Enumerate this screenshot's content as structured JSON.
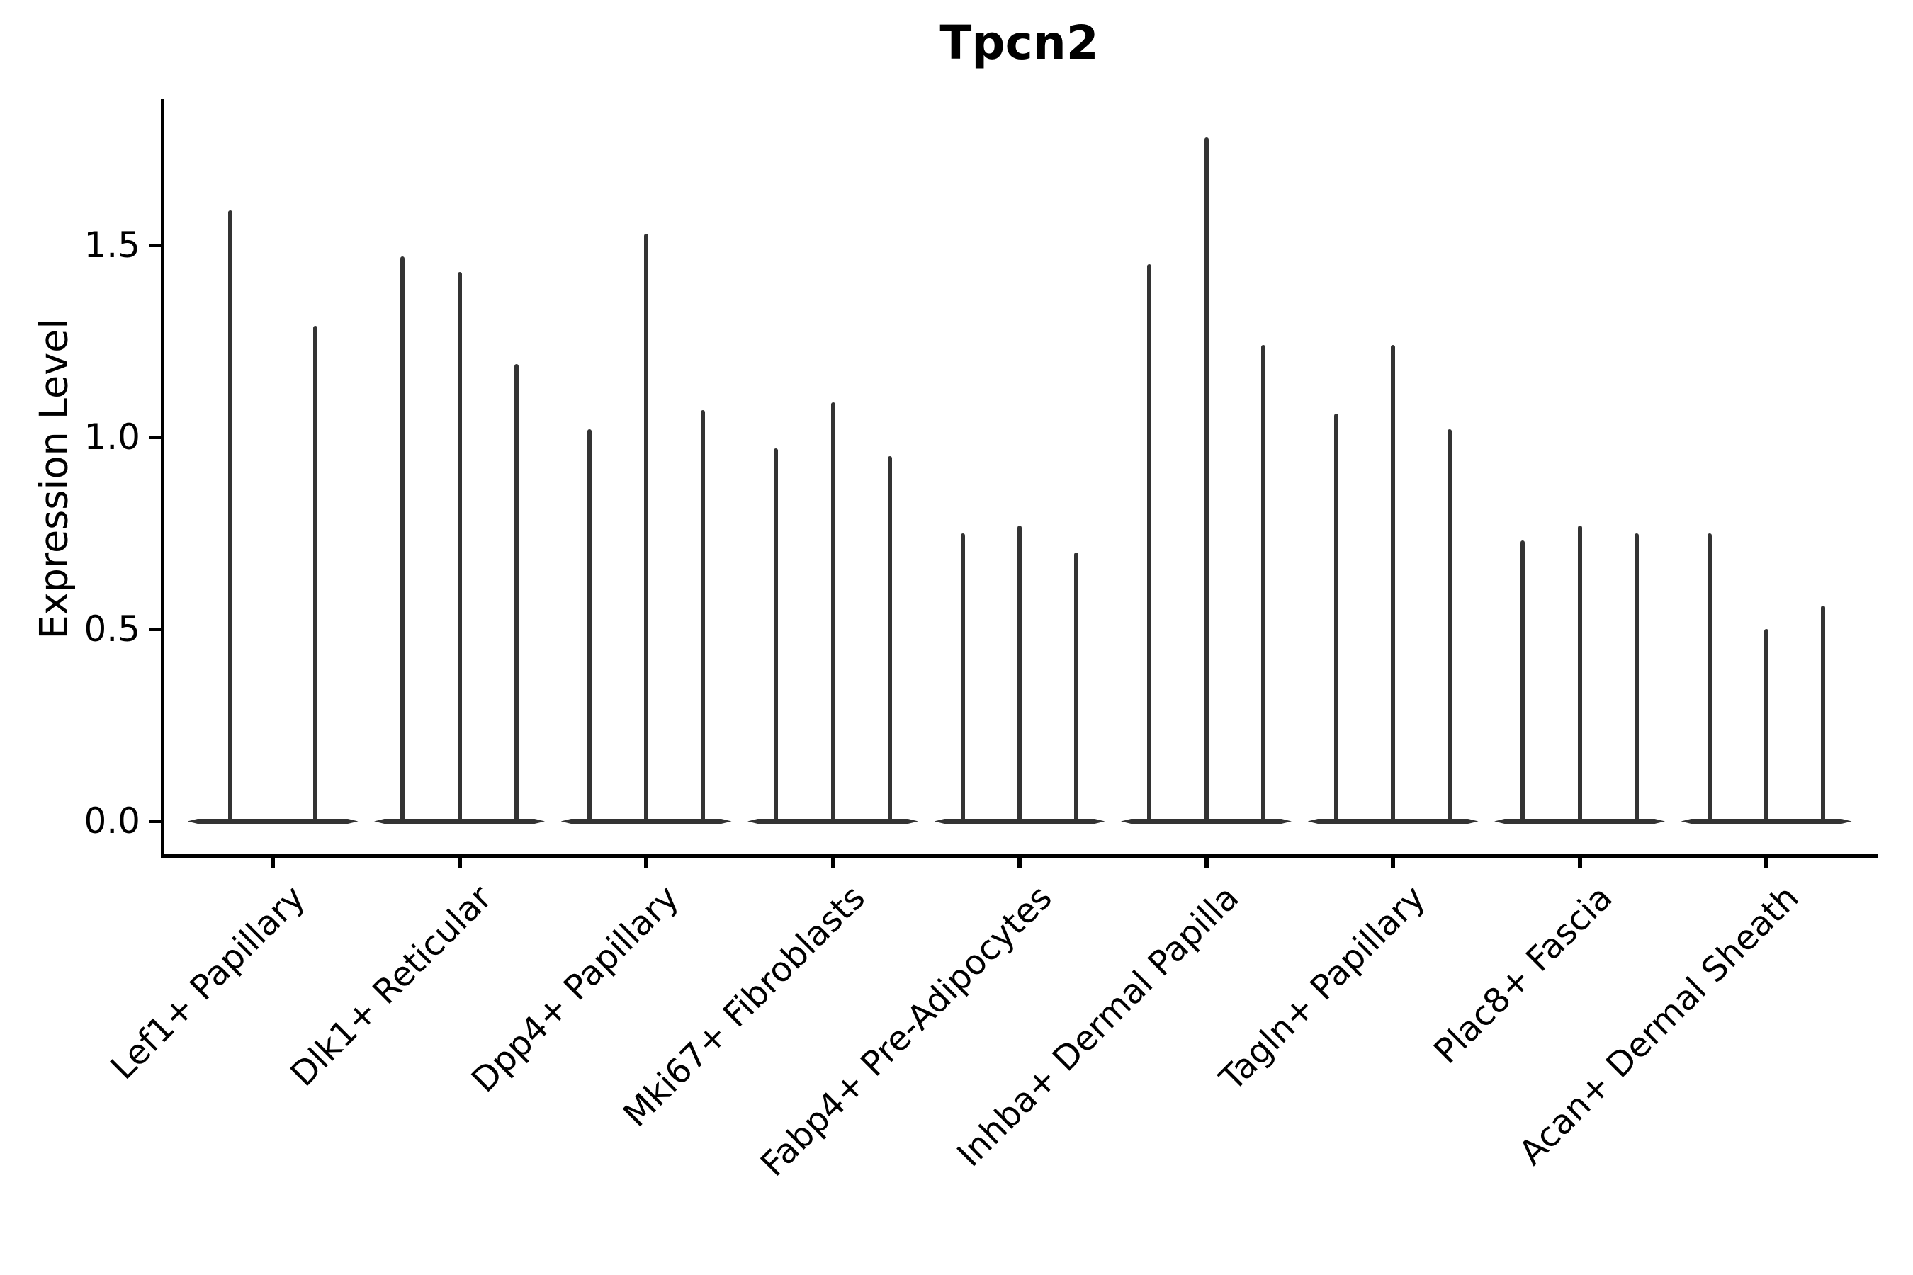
{
  "title": "Tpcn2",
  "y_axis": {
    "label": "Expression Level",
    "tick_labels": [
      "0.0",
      "0.5",
      "1.0",
      "1.5"
    ]
  },
  "chart_data": {
    "type": "violin",
    "title": "Tpcn2",
    "ylabel": "Expression Level",
    "xlabel": "",
    "yticks": [
      0.0,
      0.5,
      1.0,
      1.5
    ],
    "ylim": [
      -0.1,
      1.88
    ],
    "grid": false,
    "legend": "none",
    "violin_color": "#333333",
    "axis_color": "#000000",
    "description": "Stacked-violin style gene expression plot. Each category shows 2-3 extremely thin violins: density mass concentrated at 0 (flat horizontal base) with a needle-like spike rising to the maximum expression value.",
    "categories": [
      "Lef1+ Papillary",
      "Dlk1+ Reticular",
      "Dpp4+ Papillary",
      "Mki67+ Fibroblasts",
      "Fabp4+ Pre-Adipocytes",
      "Inhba+ Dermal Papilla",
      "Tagln+ Papillary",
      "Plac8+ Fascia",
      "Acan+ Dermal Sheath"
    ],
    "violins": [
      {
        "category": "Lef1+ Papillary",
        "baseline_value": 0,
        "peak_values": [
          1.59,
          1.29
        ]
      },
      {
        "category": "Dlk1+ Reticular",
        "baseline_value": 0,
        "peak_values": [
          1.47,
          1.43,
          1.19
        ]
      },
      {
        "category": "Dpp4+ Papillary",
        "baseline_value": 0,
        "peak_values": [
          1.02,
          1.53,
          1.07
        ]
      },
      {
        "category": "Mki67+ Fibroblasts",
        "baseline_value": 0,
        "peak_values": [
          0.97,
          1.09,
          0.95
        ]
      },
      {
        "category": "Fabp4+ Pre-Adipocytes",
        "baseline_value": 0,
        "peak_values": [
          0.75,
          0.77,
          0.7
        ]
      },
      {
        "category": "Inhba+ Dermal Papilla",
        "baseline_value": 0,
        "peak_values": [
          1.45,
          1.78,
          1.24
        ]
      },
      {
        "category": "Tagln+ Papillary",
        "baseline_value": 0,
        "peak_values": [
          1.06,
          1.24,
          1.02
        ]
      },
      {
        "category": "Plac8+ Fascia",
        "baseline_value": 0,
        "peak_values": [
          0.73,
          0.77,
          0.75
        ]
      },
      {
        "category": "Acan+ Dermal Sheath",
        "baseline_value": 0,
        "peak_values": [
          0.75,
          0.5,
          0.56
        ]
      }
    ]
  }
}
